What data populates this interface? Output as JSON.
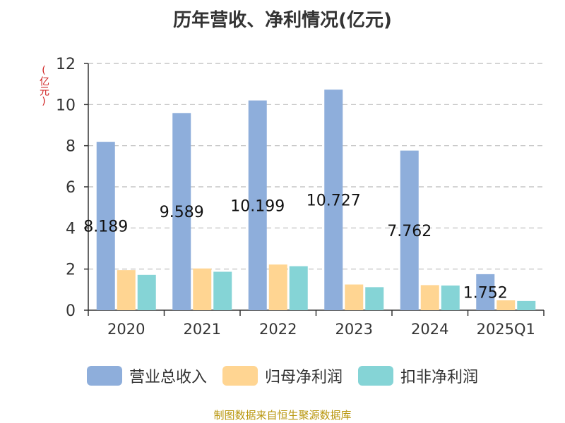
{
  "chart_data": {
    "type": "bar",
    "title": "历年营收、净利情况(亿元)",
    "ylabel": "(亿元)",
    "xlabel": "",
    "categories": [
      "2020",
      "2021",
      "2022",
      "2023",
      "2024",
      "2025Q1"
    ],
    "ylim": [
      0,
      12
    ],
    "yticks": [
      "0",
      "2",
      "4",
      "6",
      "8",
      "10",
      "12"
    ],
    "grid": true,
    "legend_position": "bottom",
    "series": [
      {
        "name": "营业总收入",
        "color": "#8eaedb",
        "values": [
          8.189,
          9.589,
          10.199,
          10.727,
          7.762,
          1.752
        ],
        "labels": [
          "8.189",
          "9.589",
          "10.199",
          "10.727",
          "7.762",
          "1.752"
        ]
      },
      {
        "name": "归母净利润",
        "color": "#ffd592",
        "values": [
          1.95,
          2.03,
          2.22,
          1.25,
          1.22,
          0.48
        ]
      },
      {
        "name": "扣非净利润",
        "color": "#85d4d6",
        "values": [
          1.72,
          1.87,
          2.14,
          1.12,
          1.2,
          0.45
        ]
      }
    ]
  },
  "footer": {
    "source": "制图数据来自恒生聚源数据库"
  }
}
